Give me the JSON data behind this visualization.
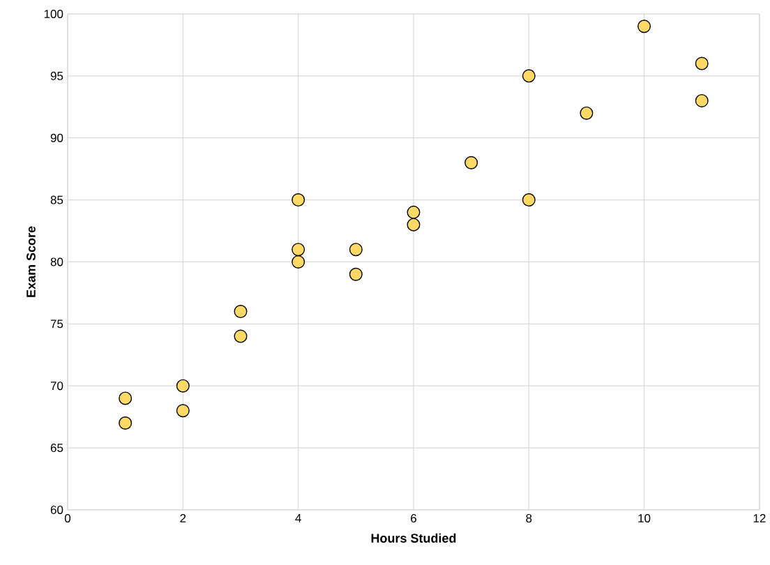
{
  "chart_data": {
    "type": "scatter",
    "xlabel": "Hours Studied",
    "ylabel": "Exam Score",
    "x": [
      1,
      1,
      2,
      2,
      3,
      3,
      4,
      4,
      4,
      5,
      5,
      6,
      6,
      7,
      8,
      8,
      9,
      10,
      11,
      11
    ],
    "values": [
      67,
      69,
      68,
      70,
      74,
      76,
      80,
      81,
      85,
      79,
      81,
      83,
      84,
      88,
      85,
      95,
      92,
      99,
      93,
      96
    ],
    "color": "#ffd966",
    "marker": "circle",
    "grid": true,
    "xlim": [
      0,
      12
    ],
    "xticks": [
      0,
      2,
      4,
      6,
      8,
      10,
      12
    ],
    "ylim": [
      60,
      100
    ],
    "yticks": [
      60,
      65,
      70,
      75,
      80,
      85,
      90,
      95,
      100
    ]
  }
}
